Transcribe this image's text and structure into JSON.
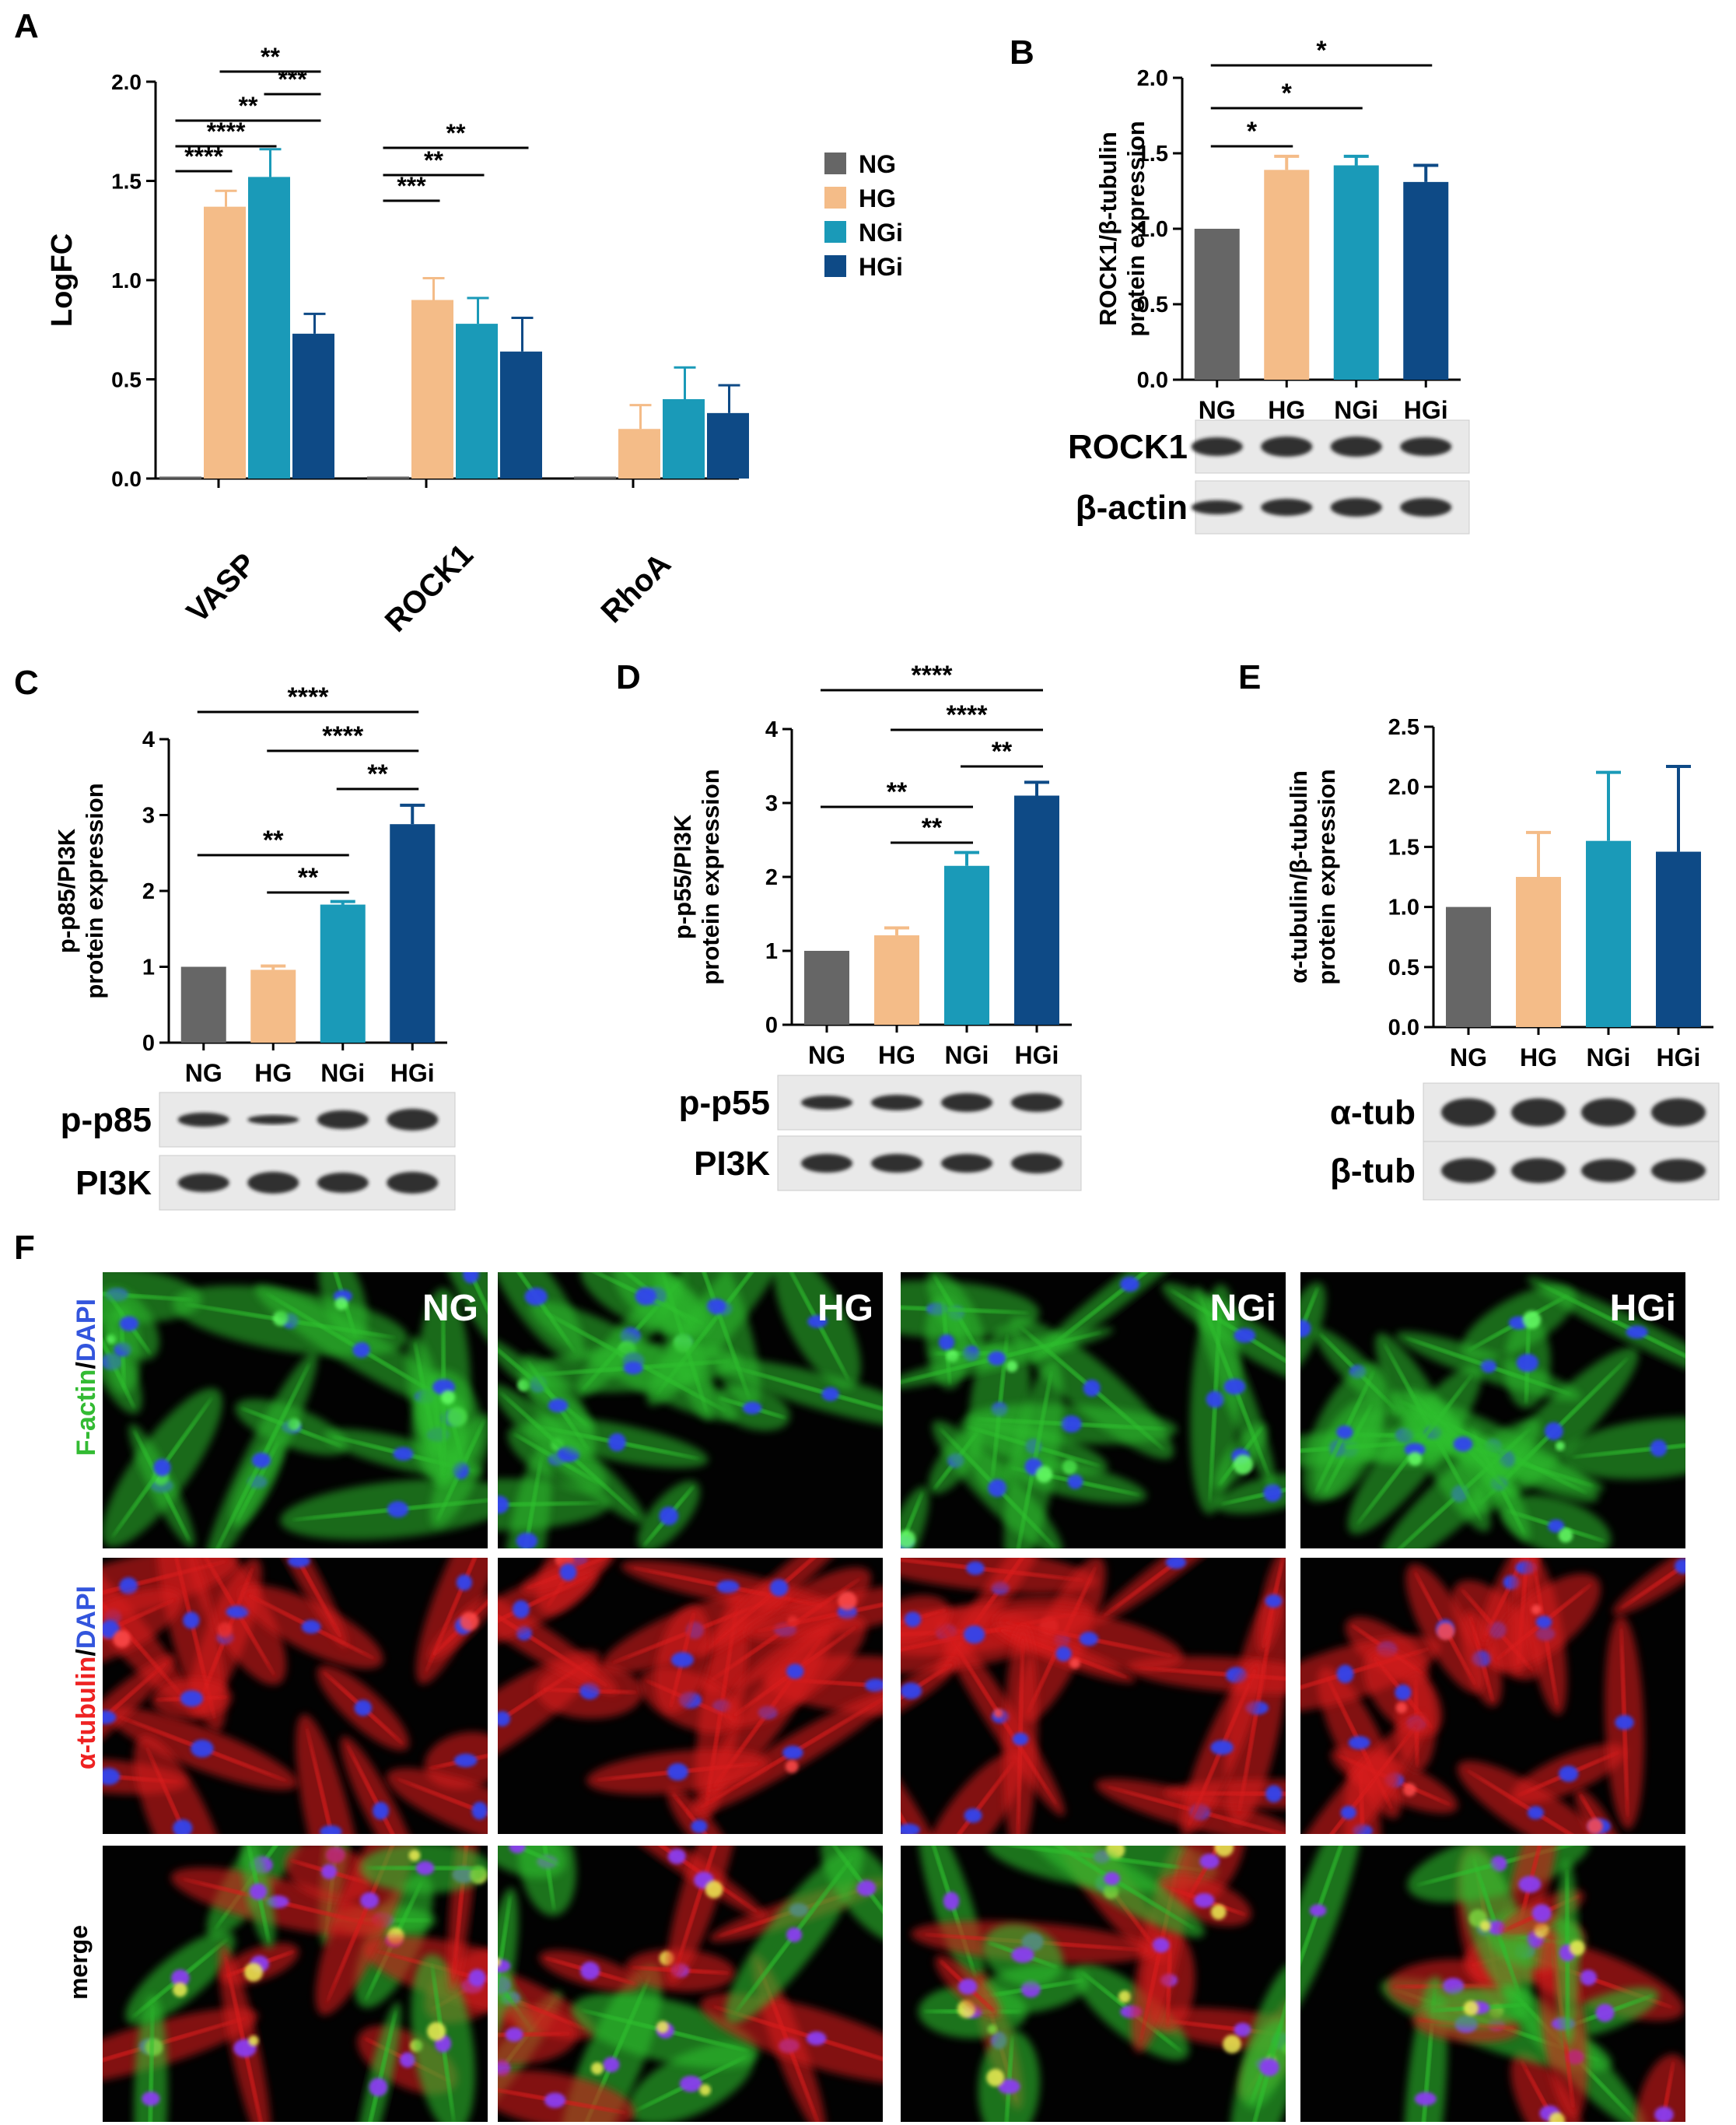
{
  "colors": {
    "NG": "#666666",
    "HG": "#f4bc88",
    "NGi": "#1a9ab8",
    "HGi": "#0e4a86",
    "axis": "#000000"
  },
  "panel_labels": {
    "A": "A",
    "B": "B",
    "C": "C",
    "D": "D",
    "E": "E",
    "F": "F"
  },
  "chart_data": [
    {
      "panel": "A",
      "type": "bar",
      "ylabel": "LogFC",
      "ylim": [
        0,
        2.0
      ],
      "yticks": [
        "0.0",
        "0.5",
        "1.0",
        "1.5",
        "2.0"
      ],
      "categories": [
        "VASP",
        "ROCK1",
        "RhoA"
      ],
      "legend": {
        "placement": "right",
        "entries": [
          "NG",
          "HG",
          "NGi",
          "HGi"
        ]
      },
      "series": [
        {
          "name": "NG",
          "values": [
            0.0,
            0.0,
            0.0
          ],
          "err": [
            0,
            0,
            0
          ]
        },
        {
          "name": "HG",
          "values": [
            1.37,
            0.9,
            0.25
          ],
          "err": [
            0.08,
            0.11,
            0.12
          ]
        },
        {
          "name": "NGi",
          "values": [
            1.52,
            0.78,
            0.4
          ],
          "err": [
            0.14,
            0.13,
            0.16
          ]
        },
        {
          "name": "HGi",
          "values": [
            0.73,
            0.64,
            0.33
          ],
          "err": [
            0.1,
            0.17,
            0.14
          ]
        }
      ],
      "significance": [
        {
          "from": "NG",
          "to": "HG",
          "cat": "VASP",
          "label": "****"
        },
        {
          "from": "NG",
          "to": "NGi",
          "cat": "VASP",
          "label": "****"
        },
        {
          "from": "NG",
          "to": "HGi",
          "cat": "VASP",
          "label": "**"
        },
        {
          "from": "HG",
          "to": "HGi",
          "cat": "VASP",
          "label": "**"
        },
        {
          "from": "NGi",
          "to": "HGi",
          "cat": "VASP",
          "label": "***"
        },
        {
          "from": "NG",
          "to": "HG",
          "cat": "ROCK1",
          "label": "***"
        },
        {
          "from": "NG",
          "to": "NGi",
          "cat": "ROCK1",
          "label": "**"
        },
        {
          "from": "NG",
          "to": "HGi",
          "cat": "ROCK1",
          "label": "**"
        }
      ]
    },
    {
      "panel": "B",
      "type": "bar",
      "ylabel": [
        "ROCK1/β-tubulin",
        "protein expression"
      ],
      "ylim": [
        0,
        2.0
      ],
      "yticks": [
        "0.0",
        "0.5",
        "1.0",
        "1.5",
        "2.0"
      ],
      "categories": [
        "NG",
        "HG",
        "NGi",
        "HGi"
      ],
      "values": [
        1.0,
        1.39,
        1.42,
        1.31
      ],
      "err": [
        0,
        0.09,
        0.06,
        0.11
      ],
      "significance": [
        {
          "from": "NG",
          "to": "HG",
          "label": "*"
        },
        {
          "from": "NG",
          "to": "NGi",
          "label": "*"
        },
        {
          "from": "NG",
          "to": "HGi",
          "label": "*"
        }
      ],
      "blots": [
        "ROCK1",
        "β-actin"
      ]
    },
    {
      "panel": "C",
      "type": "bar",
      "ylabel": [
        "p-p85/PI3K",
        "protein expression"
      ],
      "ylim": [
        0,
        4
      ],
      "yticks": [
        "0",
        "1",
        "2",
        "3",
        "4"
      ],
      "categories": [
        "NG",
        "HG",
        "NGi",
        "HGi"
      ],
      "values": [
        1.0,
        0.96,
        1.82,
        2.88
      ],
      "err": [
        0,
        0.05,
        0.04,
        0.25
      ],
      "significance": [
        {
          "from": "NG",
          "to": "HGi",
          "label": "****"
        },
        {
          "from": "HG",
          "to": "HGi",
          "label": "****"
        },
        {
          "from": "NGi",
          "to": "HGi",
          "label": "**"
        },
        {
          "from": "NG",
          "to": "NGi",
          "label": "**"
        },
        {
          "from": "HG",
          "to": "NGi",
          "label": "**"
        }
      ],
      "blots": [
        "p-p85",
        "PI3K"
      ]
    },
    {
      "panel": "D",
      "type": "bar",
      "ylabel": [
        "p-p55/PI3K",
        "protein expression"
      ],
      "ylim": [
        0,
        4
      ],
      "yticks": [
        "0",
        "1",
        "2",
        "3",
        "4"
      ],
      "categories": [
        "NG",
        "HG",
        "NGi",
        "HGi"
      ],
      "values": [
        1.0,
        1.21,
        2.15,
        3.1
      ],
      "err": [
        0,
        0.1,
        0.18,
        0.18
      ],
      "significance": [
        {
          "from": "NG",
          "to": "HGi",
          "label": "****"
        },
        {
          "from": "HG",
          "to": "HGi",
          "label": "****"
        },
        {
          "from": "NGi",
          "to": "HGi",
          "label": "**"
        },
        {
          "from": "NG",
          "to": "NGi",
          "label": "**"
        },
        {
          "from": "HG",
          "to": "NGi",
          "label": "**"
        }
      ],
      "blots": [
        "p-p55",
        "PI3K"
      ]
    },
    {
      "panel": "E",
      "type": "bar",
      "ylabel": [
        "α-tubulin/β-tubulin",
        "protein expression"
      ],
      "ylim": [
        0,
        2.5
      ],
      "yticks": [
        "0.0",
        "0.5",
        "1.0",
        "1.5",
        "2.0",
        "2.5"
      ],
      "categories": [
        "NG",
        "HG",
        "NGi",
        "HGi"
      ],
      "values": [
        1.0,
        1.25,
        1.55,
        1.46
      ],
      "err": [
        0,
        0.37,
        0.57,
        0.71
      ],
      "significance": [],
      "blots": [
        "α-tub",
        "β-tub"
      ]
    }
  ],
  "panel_f": {
    "columns": [
      "NG",
      "HG",
      "NGi",
      "HGi"
    ],
    "row_labels": {
      "row1": {
        "a": "F-actin",
        "sep": "/",
        "b": "DAPI"
      },
      "row2": {
        "a": "α-tubulin",
        "sep": "/",
        "b": "DAPI"
      },
      "row3": {
        "a": "merge"
      }
    }
  }
}
